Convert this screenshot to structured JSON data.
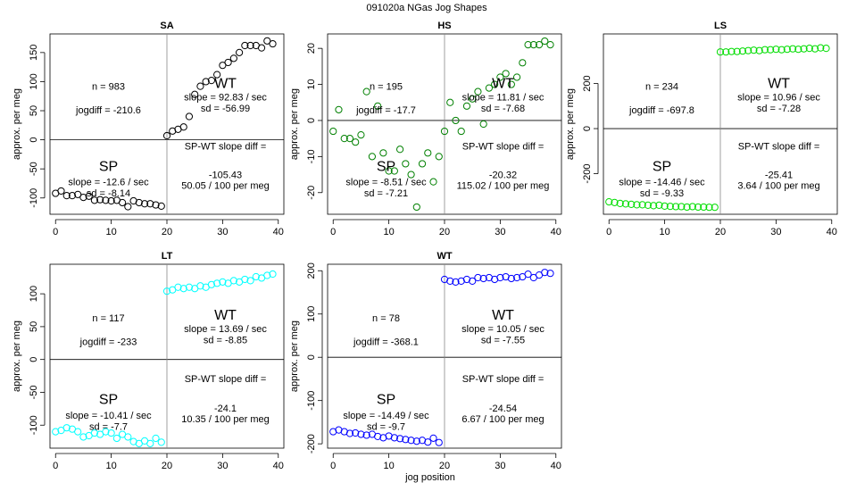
{
  "figure": {
    "title": "091020a    NGas Jog Shapes",
    "xlabel": "jog position",
    "ylabel": "approx. per meg"
  },
  "chart_data": [
    {
      "type": "scatter",
      "id": "sa",
      "title": "SA",
      "color": "#000000",
      "xlabel": "jog position",
      "ylabel": "approx. per meg",
      "xlim": [
        -1,
        41
      ],
      "ylim": [
        -128,
        182
      ],
      "xticks": [
        0,
        10,
        20,
        30,
        40
      ],
      "yticks": [
        -100,
        -50,
        0,
        50,
        100,
        150
      ],
      "xdata": [
        0,
        1,
        2,
        3,
        4,
        5,
        6,
        7,
        8,
        9,
        10,
        11,
        12,
        13,
        14,
        15,
        16,
        17,
        18,
        19,
        20,
        21,
        22,
        23,
        24,
        25,
        26,
        27,
        28,
        29,
        30,
        31,
        32,
        33,
        34,
        35,
        36,
        37,
        38,
        39
      ],
      "ydata": [
        -92,
        -88,
        -96,
        -96,
        -94,
        -99,
        -97,
        -104,
        -103,
        -104,
        -105,
        -104,
        -108,
        -115,
        -105,
        -108,
        -110,
        -110,
        -112,
        -114,
        7,
        15,
        18,
        22,
        40,
        78,
        92,
        100,
        102,
        112,
        128,
        133,
        140,
        150,
        162,
        162,
        162,
        158,
        170,
        165
      ],
      "labels": {
        "n": "n = 983",
        "jogdiff": "jogdiff = -210.6",
        "wt": "WT",
        "wt_slope": "slope = 92.83 / sec",
        "wt_sd": "sd = -56.99",
        "sp": "SP",
        "sp_slope": "slope = -12.6 / sec",
        "sp_sd": "sd = -8.14",
        "diff_label": "SP-WT slope diff =",
        "diff_value": "-105.43",
        "diff_per": "50.05 / 100 per meg"
      }
    },
    {
      "type": "scatter",
      "id": "hs",
      "title": "HS",
      "color": "#008000",
      "xlabel": "jog position",
      "ylabel": "approx. per meg",
      "xlim": [
        -1,
        41
      ],
      "ylim": [
        -26,
        24
      ],
      "xticks": [
        0,
        10,
        20,
        30,
        40
      ],
      "yticks": [
        -20,
        -10,
        0,
        10,
        20
      ],
      "xdata": [
        0,
        1,
        2,
        3,
        4,
        5,
        6,
        7,
        8,
        9,
        10,
        11,
        12,
        13,
        14,
        15,
        16,
        17,
        18,
        19,
        20,
        21,
        22,
        23,
        24,
        25,
        26,
        27,
        28,
        29,
        30,
        31,
        32,
        33,
        34,
        35,
        36,
        37,
        38,
        39
      ],
      "ydata": [
        -3,
        3,
        -5,
        -5,
        -6,
        -4,
        8,
        -10,
        4,
        -9,
        -14,
        -14,
        -8,
        -12,
        -15,
        -24,
        -12,
        -9,
        -17,
        -10,
        -3,
        5,
        0,
        -3,
        4,
        6,
        8,
        -1,
        9,
        10,
        12,
        13,
        10,
        12,
        16,
        21,
        21,
        21,
        22,
        21
      ],
      "labels": {
        "n": "n = 195",
        "jogdiff": "jogdiff = -17.7",
        "wt": "WT",
        "wt_slope": "slope = 11.81 / sec",
        "wt_sd": "sd = -7.68",
        "sp": "SP",
        "sp_slope": "slope = -8.51 / sec",
        "sp_sd": "sd = -7.21",
        "diff_label": "SP-WT slope diff =",
        "diff_value": "-20.32",
        "diff_per": "115.02 / 100 per meg"
      }
    },
    {
      "type": "scatter",
      "id": "ls",
      "title": "LS",
      "color": "#00dd00",
      "xlabel": "jog position",
      "ylabel": "approx. per meg",
      "xlim": [
        -1,
        41
      ],
      "ylim": [
        -380,
        420
      ],
      "xticks": [
        0,
        10,
        20,
        30,
        40
      ],
      "yticks": [
        -200,
        0,
        200
      ],
      "xdata": [
        0,
        1,
        2,
        3,
        4,
        5,
        6,
        7,
        8,
        9,
        10,
        11,
        12,
        13,
        14,
        15,
        16,
        17,
        18,
        19,
        20,
        21,
        22,
        23,
        24,
        25,
        26,
        27,
        28,
        29,
        30,
        31,
        32,
        33,
        34,
        35,
        36,
        37,
        38,
        39
      ],
      "ydata": [
        -325,
        -328,
        -332,
        -334,
        -336,
        -338,
        -338,
        -340,
        -342,
        -340,
        -344,
        -345,
        -346,
        -346,
        -348,
        -346,
        -348,
        -348,
        -349,
        -349,
        340,
        340,
        342,
        342,
        344,
        346,
        348,
        346,
        350,
        350,
        352,
        350,
        352,
        354,
        352,
        354,
        356,
        354,
        358,
        356
      ],
      "labels": {
        "n": "n = 234",
        "jogdiff": "jogdiff = -697.8",
        "wt": "WT",
        "wt_slope": "slope = 10.96 / sec",
        "wt_sd": "sd = -7.28",
        "sp": "SP",
        "sp_slope": "slope = -14.46 / sec",
        "sp_sd": "sd = -9.33",
        "diff_label": "SP-WT slope diff =",
        "diff_value": "-25.41",
        "diff_per": "3.64 / 100 per meg"
      }
    },
    {
      "type": "scatter",
      "id": "lt",
      "title": "LT",
      "color": "#00ffff",
      "xlabel": "jog position",
      "ylabel": "approx. per meg",
      "xlim": [
        -1,
        41
      ],
      "ylim": [
        -135,
        145
      ],
      "xticks": [
        0,
        10,
        20,
        30,
        40
      ],
      "yticks": [
        -100,
        -50,
        0,
        50,
        100
      ],
      "xdata": [
        0,
        1,
        2,
        3,
        4,
        5,
        6,
        7,
        8,
        9,
        10,
        11,
        12,
        13,
        14,
        15,
        16,
        17,
        18,
        19,
        20,
        21,
        22,
        23,
        24,
        25,
        26,
        27,
        28,
        29,
        30,
        31,
        32,
        33,
        34,
        35,
        36,
        37,
        38,
        39
      ],
      "ydata": [
        -110,
        -108,
        -104,
        -106,
        -110,
        -118,
        -116,
        -112,
        -114,
        -110,
        -112,
        -120,
        -114,
        -118,
        -125,
        -128,
        -124,
        -128,
        -120,
        -126,
        104,
        106,
        110,
        108,
        110,
        108,
        112,
        110,
        114,
        116,
        118,
        116,
        120,
        118,
        122,
        120,
        126,
        124,
        128,
        130
      ],
      "labels": {
        "n": "n = 117",
        "jogdiff": "jogdiff = -233",
        "wt": "WT",
        "wt_slope": "slope = 13.69 / sec",
        "wt_sd": "sd = -8.85",
        "sp": "SP",
        "sp_slope": "slope = -10.41 / sec",
        "sp_sd": "sd = -7.7",
        "diff_label": "SP-WT slope diff =",
        "diff_value": "-24.1",
        "diff_per": "10.35 / 100 per meg"
      }
    },
    {
      "type": "scatter",
      "id": "wt",
      "title": "WT",
      "color": "#0000ff",
      "xlabel": "jog position",
      "ylabel": "approx. per meg",
      "xlim": [
        -1,
        41
      ],
      "ylim": [
        -210,
        215
      ],
      "xticks": [
        0,
        10,
        20,
        30,
        40
      ],
      "yticks": [
        -200,
        -100,
        0,
        100,
        200
      ],
      "xdata": [
        0,
        1,
        2,
        3,
        4,
        5,
        6,
        7,
        8,
        9,
        10,
        11,
        12,
        13,
        14,
        15,
        16,
        17,
        18,
        19,
        20,
        21,
        22,
        23,
        24,
        25,
        26,
        27,
        28,
        29,
        30,
        31,
        32,
        33,
        34,
        35,
        36,
        37,
        38,
        39
      ],
      "ydata": [
        -172,
        -168,
        -172,
        -176,
        -175,
        -178,
        -180,
        -178,
        -183,
        -186,
        -182,
        -186,
        -188,
        -190,
        -192,
        -194,
        -192,
        -196,
        -187,
        -197,
        180,
        176,
        174,
        176,
        180,
        176,
        184,
        182,
        184,
        180,
        184,
        186,
        182,
        184,
        186,
        192,
        184,
        190,
        196,
        194
      ],
      "labels": {
        "n": "n = 78",
        "jogdiff": "jogdiff = -368.1",
        "wt": "WT",
        "wt_slope": "slope = 10.05 / sec",
        "wt_sd": "sd = -7.55",
        "sp": "SP",
        "sp_slope": "slope = -14.49 / sec",
        "sp_sd": "sd = -9.7",
        "diff_label": "SP-WT slope diff =",
        "diff_value": "-24.54",
        "diff_per": "6.67 / 100 per meg"
      }
    }
  ]
}
